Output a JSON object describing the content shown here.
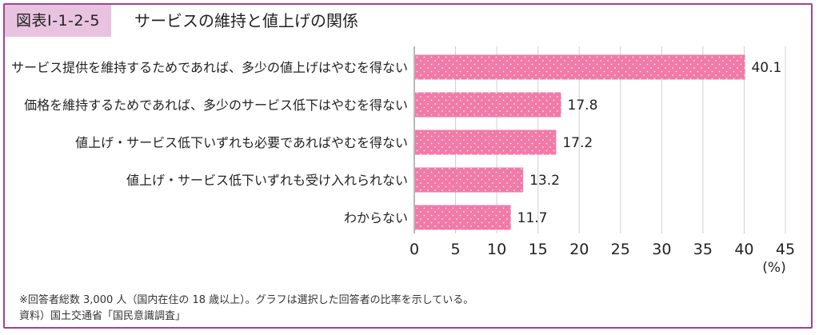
{
  "figure": {
    "label": "図表Ⅰ-1-2-5",
    "title": "サービスの維持と値上げの関係"
  },
  "chart_data": {
    "type": "bar",
    "orientation": "horizontal",
    "categories": [
      "サービス提供を維持するためであれば、多少の値上げはやむを得ない",
      "価格を維持するためであれば、多少のサービス低下はやむを得ない",
      "値上げ・サービス低下いずれも必要であればやむを得ない",
      "値上げ・サービス低下いずれも受け入れられない",
      "わからない"
    ],
    "values": [
      40.1,
      17.8,
      17.2,
      13.2,
      11.7
    ],
    "value_labels": [
      "40.1",
      "17.8",
      "17.2",
      "13.2",
      "11.7"
    ],
    "xlim": [
      0,
      45
    ],
    "xticks": [
      "0",
      "5",
      "10",
      "15",
      "20",
      "25",
      "30",
      "35",
      "40",
      "45"
    ],
    "xunit": "(%)",
    "grid": true,
    "bar_color": "#f07aa8",
    "dot_color": "#ffe4ef"
  },
  "notes": {
    "note1": "※回答者総数 3,000 人（国内在住の 18 歳以上）。グラフは選択した回答者の比率を示している。",
    "source": "資料）国土交通省「国民意識調査」"
  },
  "colors": {
    "frame": "#a0448f",
    "label_bg": "#e8c3df",
    "grid": "#cfcfcf"
  }
}
